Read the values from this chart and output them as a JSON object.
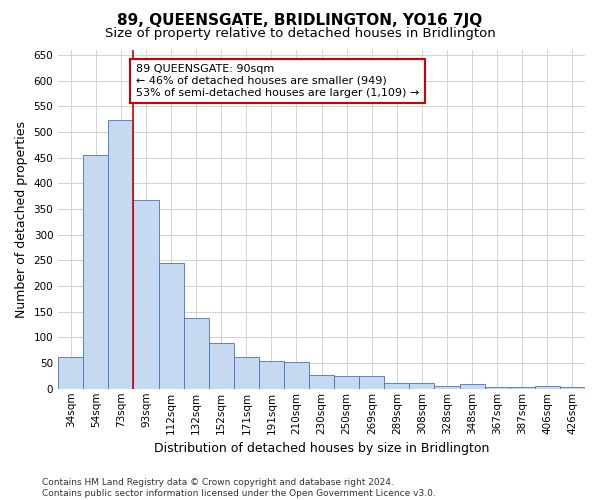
{
  "title": "89, QUEENSGATE, BRIDLINGTON, YO16 7JQ",
  "subtitle": "Size of property relative to detached houses in Bridlington",
  "xlabel": "Distribution of detached houses by size in Bridlington",
  "ylabel": "Number of detached properties",
  "categories": [
    "34sqm",
    "54sqm",
    "73sqm",
    "93sqm",
    "112sqm",
    "132sqm",
    "152sqm",
    "171sqm",
    "191sqm",
    "210sqm",
    "230sqm",
    "250sqm",
    "269sqm",
    "289sqm",
    "308sqm",
    "328sqm",
    "348sqm",
    "367sqm",
    "387sqm",
    "406sqm",
    "426sqm"
  ],
  "values": [
    62,
    455,
    523,
    368,
    245,
    137,
    90,
    62,
    55,
    53,
    26,
    25,
    25,
    11,
    12,
    6,
    9,
    3,
    3,
    5,
    3
  ],
  "bar_color": "#c6d9f1",
  "bar_edge_color": "#4472c4",
  "marker_line_color": "#cc0000",
  "annotation_line1": "89 QUEENSGATE: 90sqm",
  "annotation_line2": "← 46% of detached houses are smaller (949)",
  "annotation_line3": "53% of semi-detached houses are larger (1,109) →",
  "annotation_box_color": "#ffffff",
  "annotation_box_edge": "#cc0000",
  "ylim": [
    0,
    660
  ],
  "footer_text": "Contains HM Land Registry data © Crown copyright and database right 2024.\nContains public sector information licensed under the Open Government Licence v3.0.",
  "bg_color": "#ffffff",
  "grid_color": "#cccccc",
  "title_fontsize": 11,
  "subtitle_fontsize": 9.5,
  "axis_label_fontsize": 9,
  "tick_fontsize": 7.5,
  "footer_fontsize": 6.5,
  "annotation_fontsize": 8
}
